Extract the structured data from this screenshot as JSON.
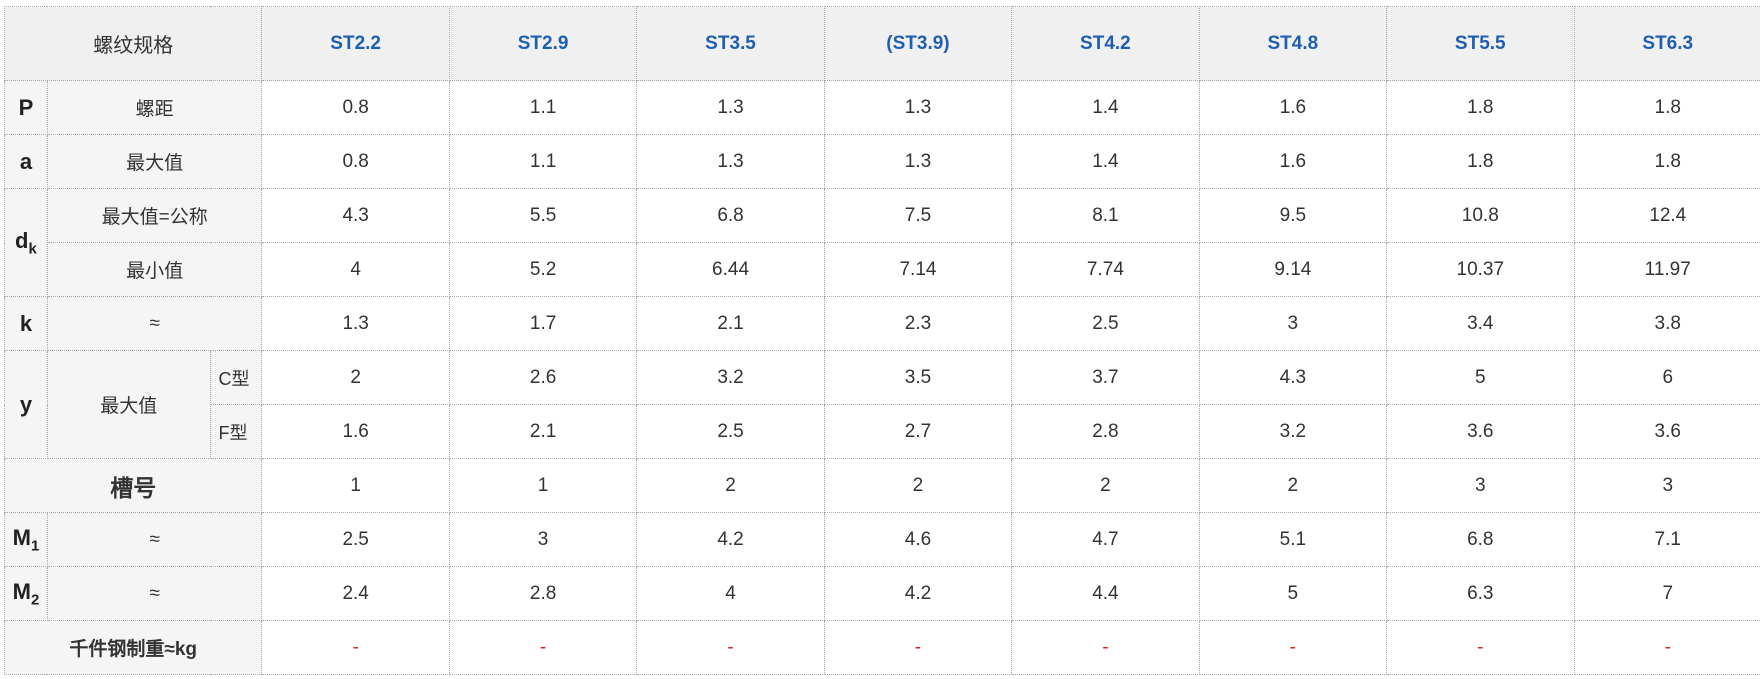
{
  "header": {
    "title": "螺纹规格",
    "specs": [
      "ST2.2",
      "ST2.9",
      "ST3.5",
      "(ST3.9)",
      "ST4.2",
      "ST4.8",
      "ST5.5",
      "ST6.3"
    ]
  },
  "rows": {
    "p": {
      "symbol": "P",
      "label": "螺距",
      "values": [
        "0.8",
        "1.1",
        "1.3",
        "1.3",
        "1.4",
        "1.6",
        "1.8",
        "1.8"
      ]
    },
    "a": {
      "symbol": "a",
      "label": "最大值",
      "values": [
        "0.8",
        "1.1",
        "1.3",
        "1.3",
        "1.4",
        "1.6",
        "1.8",
        "1.8"
      ]
    },
    "dk": {
      "symbol": "d",
      "subscript": "k",
      "max": {
        "label": "最大值=公称",
        "values": [
          "4.3",
          "5.5",
          "6.8",
          "7.5",
          "8.1",
          "9.5",
          "10.8",
          "12.4"
        ]
      },
      "min": {
        "label": "最小值",
        "values": [
          "4",
          "5.2",
          "6.44",
          "7.14",
          "7.74",
          "9.14",
          "10.37",
          "11.97"
        ]
      }
    },
    "k": {
      "symbol": "k",
      "label": "≈",
      "values": [
        "1.3",
        "1.7",
        "2.1",
        "2.3",
        "2.5",
        "3",
        "3.4",
        "3.8"
      ]
    },
    "y": {
      "symbol": "y",
      "label": "最大值",
      "c": {
        "label": "C型",
        "values": [
          "2",
          "2.6",
          "3.2",
          "3.5",
          "3.7",
          "4.3",
          "5",
          "6"
        ]
      },
      "f": {
        "label": "F型",
        "values": [
          "1.6",
          "2.1",
          "2.5",
          "2.7",
          "2.8",
          "3.2",
          "3.6",
          "3.6"
        ]
      }
    },
    "slot": {
      "label": "槽号",
      "values": [
        "1",
        "1",
        "2",
        "2",
        "2",
        "2",
        "3",
        "3"
      ]
    },
    "m1": {
      "symbol": "M",
      "subscript": "1",
      "label": "≈",
      "values": [
        "2.5",
        "3",
        "4.2",
        "4.6",
        "4.7",
        "5.1",
        "6.8",
        "7.1"
      ]
    },
    "m2": {
      "symbol": "M",
      "subscript": "2",
      "label": "≈",
      "values": [
        "2.4",
        "2.8",
        "4",
        "4.2",
        "4.4",
        "5",
        "6.3",
        "7"
      ]
    },
    "weight": {
      "label": "千件钢制重≈kg",
      "values": [
        "-",
        "-",
        "-",
        "-",
        "-",
        "-",
        "-",
        "-"
      ]
    }
  },
  "colors": {
    "spec_header": "#1f5fb0",
    "dash": "#e02020",
    "label_bg": "#f5f5f5",
    "corner_bg": "#dedede"
  }
}
